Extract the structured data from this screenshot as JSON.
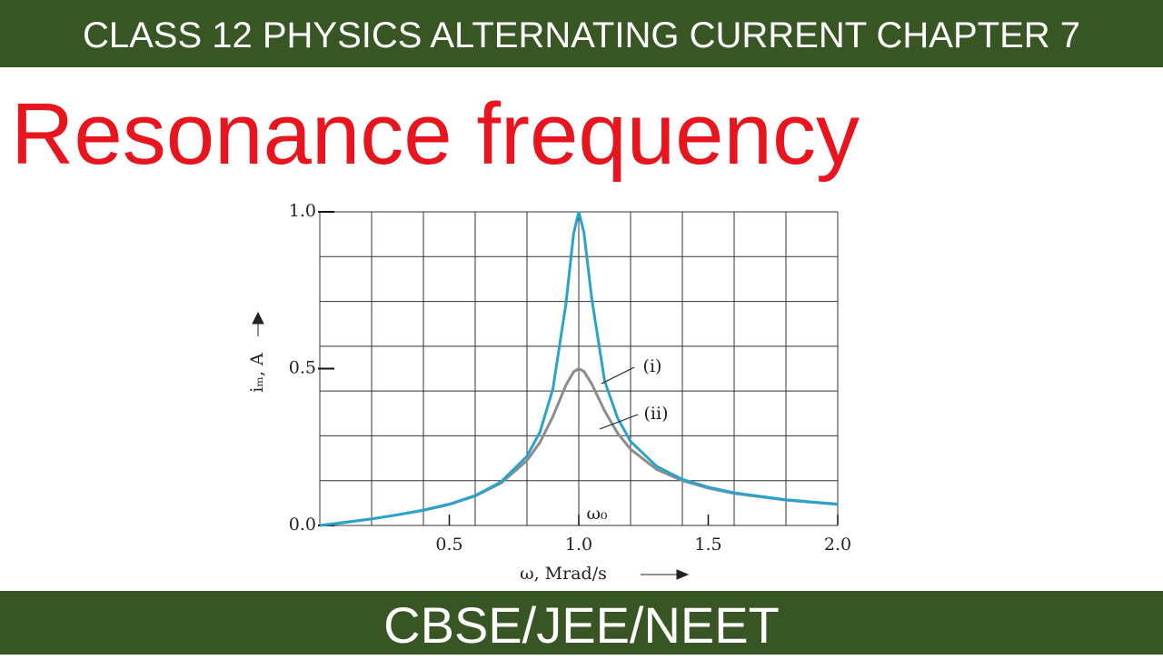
{
  "header": {
    "title": "CLASS 12 PHYSICS ALTERNATING CURRENT CHAPTER 7"
  },
  "heading": "Resonance frequency",
  "footer": "CBSE/JEE/NEET",
  "chart_data": {
    "type": "line",
    "xlabel": "ω, Mrad/s",
    "ylabel": "iₘ, A",
    "annotation": "ω₀",
    "x": [
      0,
      0.1,
      0.2,
      0.3,
      0.4,
      0.5,
      0.6,
      0.7,
      0.8,
      0.85,
      0.9,
      0.95,
      0.98,
      1.0,
      1.02,
      1.05,
      1.1,
      1.15,
      1.2,
      1.3,
      1.4,
      1.5,
      1.6,
      1.8,
      2.0
    ],
    "series": [
      {
        "name": "(i)",
        "color": "#2aa3cc",
        "values": [
          0,
          0.01,
          0.021,
          0.034,
          0.049,
          0.068,
          0.095,
          0.139,
          0.221,
          0.298,
          0.435,
          0.705,
          0.93,
          1.0,
          0.934,
          0.723,
          0.46,
          0.342,
          0.268,
          0.189,
          0.147,
          0.122,
          0.104,
          0.082,
          0.068
        ]
      },
      {
        "name": "(ii)",
        "color": "#8c8c8c",
        "values": [
          0,
          0.01,
          0.021,
          0.034,
          0.048,
          0.067,
          0.094,
          0.135,
          0.207,
          0.265,
          0.347,
          0.447,
          0.49,
          0.5,
          0.491,
          0.451,
          0.365,
          0.294,
          0.243,
          0.179,
          0.143,
          0.119,
          0.102,
          0.081,
          0.067
        ]
      }
    ],
    "xlim": [
      0,
      2.0
    ],
    "ylim": [
      0,
      1.0
    ],
    "xticks": [
      0.5,
      {
        "value": 1,
        "label": "1.0"
      },
      1.5,
      {
        "value": 2,
        "label": "2.0"
      }
    ],
    "yticks": [
      {
        "value": 0,
        "label": "0.0"
      },
      0.5,
      {
        "value": 1,
        "label": "1.0"
      }
    ],
    "grid": true
  }
}
